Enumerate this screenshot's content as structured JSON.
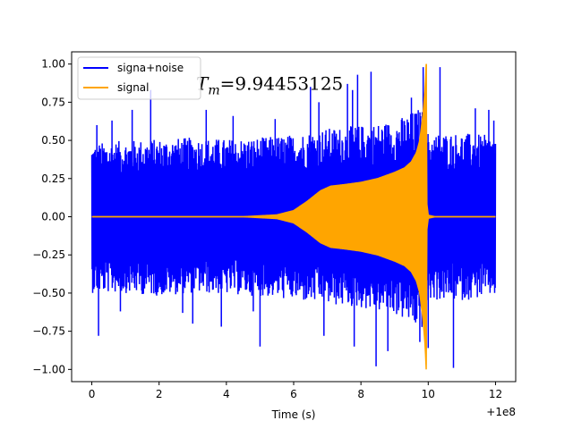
{
  "chart_data": {
    "type": "line",
    "title": "",
    "xlabel": "Time (s)",
    "ylabel": "",
    "x_offset_label": "+1e8",
    "xlim": [
      -0.6,
      12.6
    ],
    "ylim": [
      -1.08,
      1.08
    ],
    "xticks": [
      0,
      2,
      4,
      6,
      8,
      10,
      12
    ],
    "xtick_labels": [
      "0",
      "2",
      "4",
      "6",
      "8",
      "10",
      "12"
    ],
    "yticks": [
      -1.0,
      -0.75,
      -0.5,
      -0.25,
      0.0,
      0.25,
      0.5,
      0.75,
      1.0
    ],
    "ytick_labels": [
      "−1.00",
      "−0.75",
      "−0.50",
      "−0.25",
      "0.00",
      "0.25",
      "0.50",
      "0.75",
      "1.00"
    ],
    "grid": false,
    "legend_position": "top-left",
    "annotation": {
      "symbol": "T",
      "subscript": "m",
      "value_text": "=9.94453125",
      "x": 3.1,
      "y": 0.83
    },
    "series": [
      {
        "name": "signa+noise",
        "color": "#0000ff",
        "x_range": [
          0,
          12
        ],
        "envelope_upper": [
          [
            0,
            0.48
          ],
          [
            1,
            0.5
          ],
          [
            2,
            0.51
          ],
          [
            3,
            0.52
          ],
          [
            4,
            0.51
          ],
          [
            5,
            0.52
          ],
          [
            6,
            0.54
          ],
          [
            7,
            0.58
          ],
          [
            8,
            0.6
          ],
          [
            9,
            0.63
          ],
          [
            9.8,
            0.72
          ],
          [
            10,
            0.55
          ],
          [
            11,
            0.55
          ],
          [
            12,
            0.53
          ]
        ],
        "envelope_lower": [
          [
            0,
            -0.5
          ],
          [
            1,
            -0.5
          ],
          [
            2,
            -0.52
          ],
          [
            3,
            -0.5
          ],
          [
            4,
            -0.51
          ],
          [
            5,
            -0.52
          ],
          [
            6,
            -0.55
          ],
          [
            7,
            -0.58
          ],
          [
            8,
            -0.6
          ],
          [
            9,
            -0.64
          ],
          [
            9.8,
            -0.75
          ],
          [
            10,
            -0.55
          ],
          [
            11,
            -0.55
          ],
          [
            12,
            -0.52
          ]
        ],
        "spikes": [
          [
            0.15,
            0.6
          ],
          [
            0.2,
            -0.78
          ],
          [
            0.6,
            0.63
          ],
          [
            0.85,
            -0.62
          ],
          [
            1.2,
            0.7
          ],
          [
            1.75,
            0.83
          ],
          [
            2.7,
            -0.63
          ],
          [
            3.0,
            -0.7
          ],
          [
            3.4,
            0.7
          ],
          [
            3.85,
            -0.72
          ],
          [
            4.2,
            0.66
          ],
          [
            4.8,
            -0.62
          ],
          [
            5.0,
            -0.85
          ],
          [
            5.45,
            0.64
          ],
          [
            6.5,
            0.85
          ],
          [
            6.75,
            0.75
          ],
          [
            6.9,
            -0.78
          ],
          [
            7.6,
            0.87
          ],
          [
            7.75,
            0.83
          ],
          [
            7.8,
            -0.85
          ],
          [
            7.9,
            0.93
          ],
          [
            8.3,
            0.95
          ],
          [
            8.45,
            -0.98
          ],
          [
            8.8,
            -0.88
          ],
          [
            9.5,
            0.78
          ],
          [
            9.75,
            -0.82
          ],
          [
            9.85,
            0.98
          ],
          [
            10.0,
            -0.86
          ],
          [
            10.35,
            0.98
          ],
          [
            10.75,
            -0.99
          ],
          [
            11.4,
            0.71
          ],
          [
            11.8,
            0.7
          ],
          [
            11.95,
            0.63
          ]
        ]
      },
      {
        "name": "signal",
        "color": "#ffa500",
        "x_range": [
          0,
          12
        ],
        "envelope": [
          [
            0,
            0.0
          ],
          [
            4.5,
            0.0
          ],
          [
            5.5,
            0.012
          ],
          [
            6.0,
            0.04
          ],
          [
            6.4,
            0.1
          ],
          [
            6.8,
            0.17
          ],
          [
            7.1,
            0.2
          ],
          [
            7.5,
            0.21
          ],
          [
            8.0,
            0.225
          ],
          [
            8.5,
            0.25
          ],
          [
            9.0,
            0.29
          ],
          [
            9.3,
            0.32
          ],
          [
            9.5,
            0.36
          ],
          [
            9.65,
            0.42
          ],
          [
            9.75,
            0.5
          ],
          [
            9.85,
            0.68
          ],
          [
            9.91,
            0.85
          ],
          [
            9.94,
            1.0
          ],
          [
            9.95,
            0.1
          ],
          [
            10.0,
            0.01
          ],
          [
            10.2,
            0.0
          ],
          [
            12,
            0.0
          ]
        ],
        "peak": {
          "x": 9.9445,
          "y_max": 1.0,
          "y_min": -0.87
        }
      }
    ]
  }
}
